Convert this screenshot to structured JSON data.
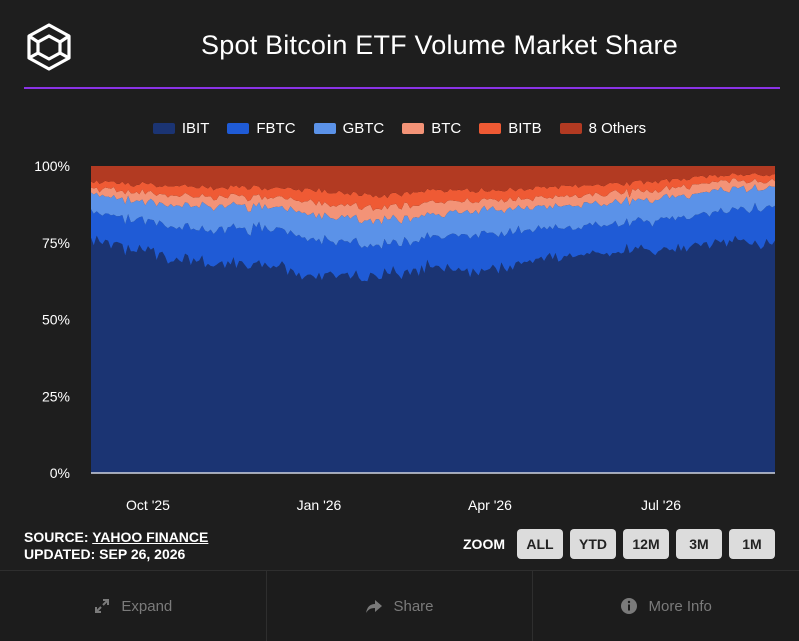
{
  "header": {
    "title": "Spot Bitcoin ETF Volume Market Share"
  },
  "colors": {
    "background": "#1e1e1e",
    "accent_line": "#8a33e6"
  },
  "legend": [
    {
      "label": "IBIT",
      "color": "#1b3473"
    },
    {
      "label": "FBTC",
      "color": "#1f5bd6"
    },
    {
      "label": "GBTC",
      "color": "#5b92e8"
    },
    {
      "label": "BTC",
      "color": "#f39377"
    },
    {
      "label": "BITB",
      "color": "#ef5a34"
    },
    {
      "label": "8 Others",
      "color": "#b23a22"
    }
  ],
  "chart_data": {
    "type": "area",
    "stacked": true,
    "title": "Spot Bitcoin ETF Volume Market Share",
    "xlabel": "",
    "ylabel": "",
    "y_ticks": [
      "0%",
      "25%",
      "50%",
      "75%",
      "100%"
    ],
    "ylim": [
      0,
      100
    ],
    "x_ticks": [
      "Oct '25",
      "Jan '26",
      "Apr '26",
      "Jul '26"
    ],
    "legend_position": "top-center",
    "x": [
      "Sep '25",
      "Oct '25",
      "Nov '25",
      "Dec '25",
      "Jan '26",
      "Feb '26",
      "Mar '26",
      "Apr '26",
      "May '26",
      "Jun '26",
      "Jul '26",
      "Aug '26",
      "Sep '26"
    ],
    "series": [
      {
        "name": "IBIT",
        "values": [
          76,
          72,
          68,
          68,
          64,
          64,
          67,
          66,
          70,
          72,
          72,
          75,
          75
        ]
      },
      {
        "name": "FBTC",
        "values": [
          9,
          10,
          11,
          12,
          12,
          10,
          10,
          12,
          10,
          9,
          10,
          10,
          12
        ]
      },
      {
        "name": "GBTC",
        "values": [
          6,
          6,
          8,
          7,
          8,
          8,
          7,
          8,
          7,
          7,
          7,
          7,
          6
        ]
      },
      {
        "name": "BTC",
        "values": [
          2,
          3,
          3,
          3,
          4,
          4,
          4,
          3,
          3,
          3,
          3,
          3,
          2
        ]
      },
      {
        "name": "BITB",
        "values": [
          2,
          3,
          3,
          3,
          4,
          4,
          4,
          3,
          3,
          3,
          3,
          2,
          2
        ]
      },
      {
        "name": "8 Others",
        "values": [
          5,
          6,
          7,
          7,
          8,
          10,
          8,
          8,
          7,
          6,
          5,
          3,
          3
        ]
      }
    ]
  },
  "source": {
    "prefix": "SOURCE: ",
    "name": "YAHOO FINANCE",
    "updated": "UPDATED: SEP 26, 2026"
  },
  "zoom": {
    "label": "ZOOM",
    "buttons": [
      "ALL",
      "YTD",
      "12M",
      "3M",
      "1M"
    ]
  },
  "footer": {
    "expand": "Expand",
    "share": "Share",
    "more_info": "More Info"
  }
}
